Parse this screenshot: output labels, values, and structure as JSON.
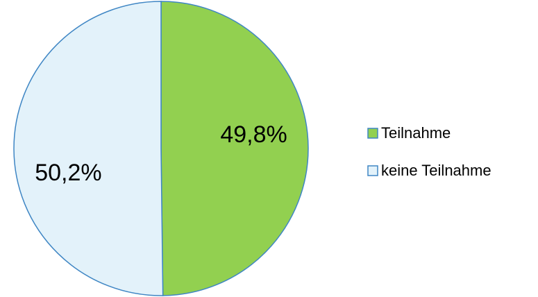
{
  "chart_data": {
    "type": "pie",
    "categories": [
      "Teilnahme",
      "keine Teilnahme"
    ],
    "values": [
      49.8,
      50.2
    ],
    "value_labels": [
      "49,8%",
      "50,2%"
    ],
    "colors": [
      "#92d050",
      "#e3f2fa"
    ],
    "legend": "right"
  }
}
